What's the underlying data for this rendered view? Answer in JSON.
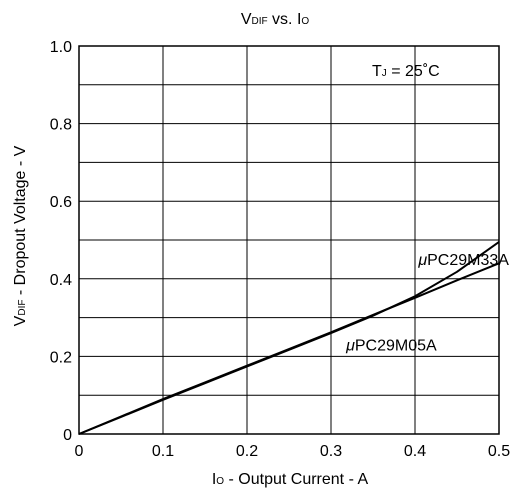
{
  "chart_data": {
    "type": "line",
    "title": {
      "main": "V",
      "main_sub": "DIF",
      "joiner": " vs. I",
      "joiner_sub": "O"
    },
    "xlabel": {
      "main": "I",
      "main_sub": "O",
      "rest": " - Output Current - A"
    },
    "ylabel": {
      "main": "V",
      "main_sub": "DIF",
      "rest": " - Dropout Voltage - V"
    },
    "xlim": [
      0,
      0.5
    ],
    "ylim": [
      0,
      1.0
    ],
    "x_ticks": [
      0,
      0.1,
      0.2,
      0.3,
      0.4,
      0.5
    ],
    "x_tick_labels": [
      "0",
      "0.1",
      "0.2",
      "0.3",
      "0.4",
      "0.5"
    ],
    "y_ticks": [
      0,
      0.2,
      0.4,
      0.6,
      0.8,
      1.0
    ],
    "y_tick_labels": [
      "0",
      "0.2",
      "0.4",
      "0.6",
      "0.8",
      "1.0"
    ],
    "grid": true,
    "grid_x_step": 0.1,
    "grid_y_step": 0.1,
    "condition": {
      "main": "T",
      "sub": "J",
      "rest": " = 25˚C"
    },
    "series": [
      {
        "name": "μPC29M33A",
        "x": [
          0,
          0.05,
          0.1,
          0.15,
          0.2,
          0.25,
          0.3,
          0.35,
          0.4,
          0.45,
          0.5
        ],
        "y": [
          0,
          0.044,
          0.088,
          0.131,
          0.174,
          0.217,
          0.26,
          0.305,
          0.355,
          0.418,
          0.495
        ]
      },
      {
        "name": "μPC29M05A",
        "x": [
          0,
          0.05,
          0.1,
          0.15,
          0.2,
          0.25,
          0.3,
          0.35,
          0.4,
          0.45,
          0.5
        ],
        "y": [
          0,
          0.045,
          0.09,
          0.133,
          0.176,
          0.219,
          0.262,
          0.307,
          0.351,
          0.396,
          0.44
        ]
      }
    ],
    "labels": [
      {
        "mu": "μ",
        "text": "PC29M33A",
        "x": 0.404,
        "y": 0.435
      },
      {
        "mu": "μ",
        "text": "PC29M05A",
        "x": 0.318,
        "y": 0.215
      }
    ],
    "line_color": "#000000",
    "grid_color": "#000000",
    "background": "#ffffff"
  }
}
